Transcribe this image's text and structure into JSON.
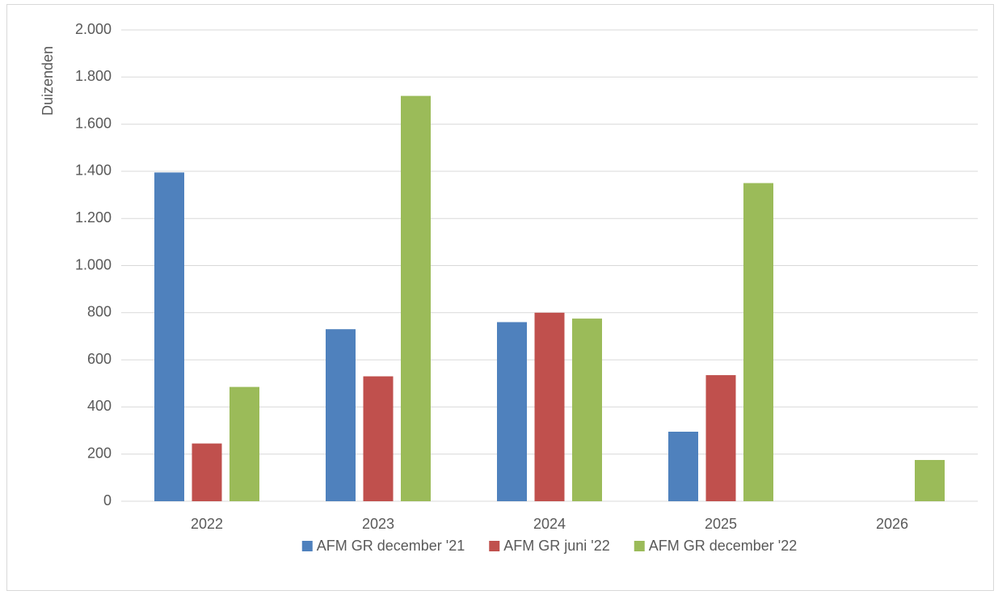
{
  "chart_data": {
    "type": "bar",
    "y_label": "Duizenden",
    "categories": [
      "2022",
      "2023",
      "2024",
      "2025",
      "2026"
    ],
    "series": [
      {
        "name": "AFM GR december '21",
        "color": "#4f81bd",
        "values": [
          1395,
          730,
          760,
          295,
          null
        ]
      },
      {
        "name": "AFM GR juni '22",
        "color": "#c0504d",
        "values": [
          245,
          530,
          800,
          535,
          null
        ]
      },
      {
        "name": "AFM GR december '22",
        "color": "#9bbb59",
        "values": [
          485,
          1720,
          775,
          1350,
          175
        ]
      }
    ],
    "ylim": [
      0,
      2000
    ],
    "yticks": [
      0,
      200,
      400,
      600,
      800,
      {
        "value": 1000,
        "label": "1.000"
      },
      {
        "value": 1200,
        "label": "1.200"
      },
      {
        "value": 1400,
        "label": "1.400"
      },
      {
        "value": 1600,
        "label": "1.600"
      },
      {
        "value": 1800,
        "label": "1.800"
      },
      {
        "value": 2000,
        "label": "2.000"
      }
    ],
    "grid": true,
    "legend": "bottom"
  }
}
